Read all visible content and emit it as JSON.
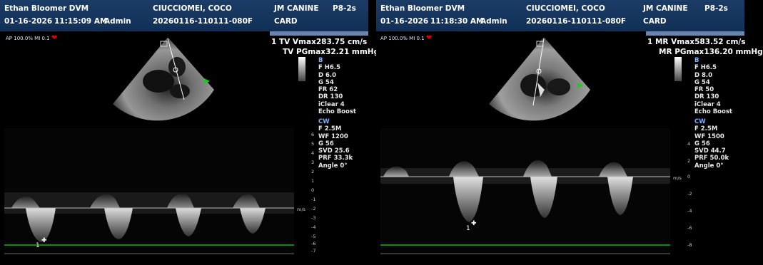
{
  "panels": [
    {
      "operator": "Ethan Bloomer DVM",
      "patient": "CIUCCIOMEI, COCO",
      "dept_line1": "JM CANINE",
      "dept_line2": "CARD",
      "probe": "P8-2s",
      "date": "01-16-2026",
      "time": "11:15:09 AM",
      "user": "Admin",
      "exam_id": "20260116-110111-080F",
      "ap_mi": "AP 100.0%  MI 0.1",
      "meas_num": "1",
      "meas1_label": "TV Vmax",
      "meas1_value": "283.75 cm/s",
      "meas2_label": "TV PGmax",
      "meas2_value": "32.21 mmHg",
      "params_b": [
        "B",
        "F H6.5",
        "D 6.0",
        "G 54",
        "FR 62",
        "DR 130",
        "iClear 4",
        "Echo Boost"
      ],
      "params_cw": [
        "CW",
        "F 2.5M",
        "WF 1200",
        "G 56",
        "SVD 25.6",
        "PRF 33.3k",
        "Angle 0°"
      ],
      "scale_unit": "m/s",
      "scale_ticks": [
        "6",
        "5",
        "4",
        "3",
        "2",
        "1",
        "0",
        "-1",
        "-2",
        "-3",
        "-4",
        "-5",
        "-6",
        "-7"
      ],
      "marker": "1"
    },
    {
      "operator": "Ethan Bloomer DVM",
      "patient": "CIUCCIOMEI, COCO",
      "dept_line1": "JM CANINE",
      "dept_line2": "CARD",
      "probe": "P8-2s",
      "date": "01-16-2026",
      "time": "11:18:30 AM",
      "user": "Admin",
      "exam_id": "20260116-110111-080F",
      "ap_mi": "AP 100.0%  MI 0.1",
      "meas_num": "1",
      "meas1_label": "MR Vmax",
      "meas1_value": "583.52 cm/s",
      "meas2_label": "MR PGmax",
      "meas2_value": "136.20 mmHg",
      "params_b": [
        "B",
        "F H6.5",
        "D 8.0",
        "G 54",
        "FR 50",
        "DR 130",
        "iClear 4",
        "Echo Boost"
      ],
      "params_cw": [
        "CW",
        "F 2.5M",
        "WF 1500",
        "G 56",
        "SVD 44.7",
        "PRF 50.0k",
        "Angle 0°"
      ],
      "scale_unit": "m/s",
      "scale_ticks": [
        "4",
        "2",
        "0",
        "-2",
        "-4",
        "-6",
        "-8"
      ],
      "marker": "1"
    }
  ],
  "colors": {
    "header_bg": "#1b3c66",
    "baseline": "#00c000",
    "heart": "#e00000",
    "param_heading": "#7fb0ff"
  }
}
